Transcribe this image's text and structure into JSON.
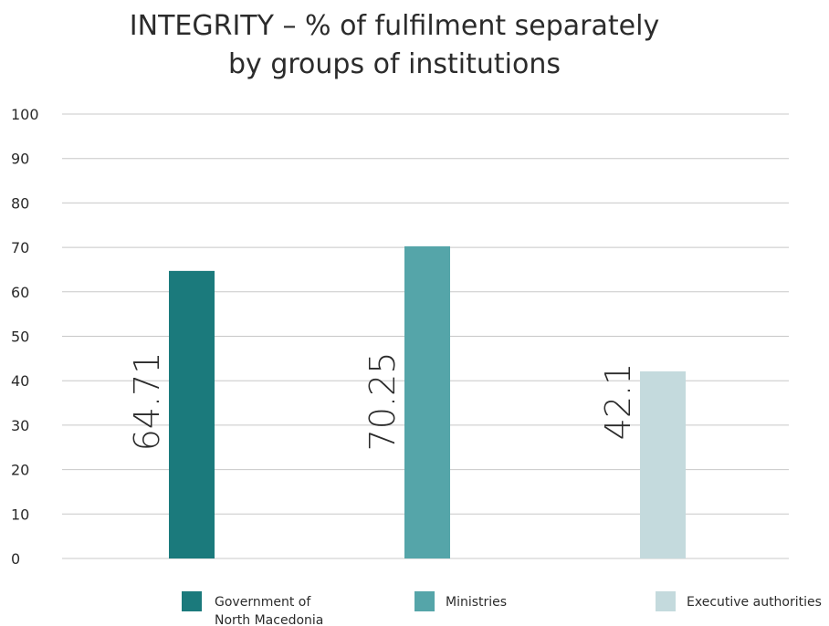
{
  "chart_data": {
    "type": "bar",
    "title_lines": [
      "INTEGRITY – % of fulfilment separately",
      "by groups of institutions"
    ],
    "categories": [
      "Government of North Macedonia",
      "Ministries",
      "Executive authorities"
    ],
    "legend_labels": [
      [
        "Government of",
        "North Macedonia"
      ],
      [
        "Ministries"
      ],
      [
        "Executive authorities"
      ]
    ],
    "values": [
      64.71,
      70.25,
      42.1
    ],
    "value_labels": [
      "64.71",
      "70.25",
      "42.1"
    ],
    "colors": [
      "#1b7a7c",
      "#55a5a9",
      "#c4dadd"
    ],
    "ylim": [
      0,
      100
    ],
    "yticks": [
      "0",
      "10",
      "20",
      "30",
      "40",
      "50",
      "60",
      "70",
      "80",
      "90",
      "100"
    ],
    "grid": true,
    "legend_position": "bottom",
    "xlabel": "",
    "ylabel": ""
  }
}
